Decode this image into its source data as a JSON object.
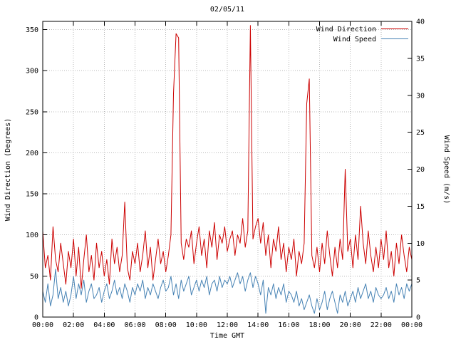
{
  "chart_data": {
    "type": "line",
    "title": "02/05/11",
    "xlabel": "Time GMT",
    "x_range": [
      "00:00",
      "24:00"
    ],
    "x_step_minutes": 10,
    "x_tick_labels": [
      "00:00",
      "02:00",
      "04:00",
      "06:00",
      "08:00",
      "10:00",
      "12:00",
      "14:00",
      "16:00",
      "18:00",
      "20:00",
      "22:00",
      "00:00"
    ],
    "y_left_ticks": [
      0,
      50,
      100,
      150,
      200,
      250,
      300,
      350
    ],
    "y_right_ticks": [
      0,
      5,
      10,
      15,
      20,
      25,
      30,
      35,
      40
    ],
    "grid": true,
    "legend_position": "top-right",
    "colors": {
      "grid": "#b8b8b8",
      "axis": "#000000"
    },
    "series": [
      {
        "name": "Wind Direction",
        "axis": "left",
        "ylabel": "Wind Direction (Degrees)",
        "ylim": [
          0,
          360
        ],
        "color": "#cc0000",
        "values": [
          105,
          60,
          75,
          45,
          110,
          70,
          55,
          90,
          65,
          40,
          80,
          60,
          95,
          50,
          85,
          35,
          70,
          100,
          55,
          75,
          45,
          90,
          60,
          80,
          50,
          70,
          40,
          95,
          65,
          85,
          55,
          75,
          140,
          60,
          45,
          80,
          65,
          90,
          55,
          75,
          105,
          60,
          85,
          45,
          70,
          95,
          65,
          80,
          55,
          75,
          100,
          272,
          345,
          340,
          90,
          70,
          95,
          85,
          105,
          65,
          90,
          110,
          75,
          95,
          60,
          105,
          85,
          115,
          70,
          100,
          90,
          110,
          80,
          95,
          105,
          75,
          100,
          90,
          120,
          85,
          105,
          355,
          95,
          110,
          120,
          90,
          115,
          75,
          100,
          60,
          95,
          80,
          110,
          70,
          90,
          55,
          85,
          70,
          95,
          50,
          80,
          65,
          90,
          260,
          290,
          75,
          60,
          85,
          55,
          90,
          65,
          105,
          75,
          50,
          85,
          60,
          95,
          70,
          180,
          80,
          95,
          60,
          100,
          70,
          135,
          90,
          65,
          105,
          75,
          55,
          85,
          60,
          95,
          70,
          105,
          60,
          80,
          50,
          90,
          65,
          100,
          75,
          55,
          85,
          70
        ]
      },
      {
        "name": "Wind Speed",
        "axis": "right",
        "ylabel": "Wind Speed (m/s)",
        "ylim": [
          0,
          40
        ],
        "color": "#4682b4",
        "values": [
          3.5,
          2.0,
          4.5,
          1.5,
          3.0,
          6.5,
          2.5,
          4.0,
          2.0,
          3.5,
          1.5,
          3.0,
          5.5,
          2.5,
          4.5,
          3.0,
          5.0,
          2.0,
          3.5,
          4.5,
          2.5,
          3.0,
          4.0,
          2.0,
          3.5,
          4.5,
          2.5,
          3.5,
          5.0,
          3.0,
          4.0,
          2.5,
          4.5,
          3.5,
          2.0,
          4.0,
          3.0,
          4.5,
          3.5,
          5.0,
          2.5,
          4.0,
          3.0,
          4.5,
          3.5,
          2.5,
          4.0,
          5.0,
          3.5,
          4.0,
          5.5,
          3.0,
          4.5,
          2.5,
          5.0,
          3.5,
          4.5,
          5.5,
          3.0,
          4.0,
          5.0,
          3.5,
          5.0,
          4.0,
          5.5,
          3.0,
          4.5,
          5.0,
          3.5,
          5.5,
          4.0,
          5.0,
          4.5,
          5.5,
          4.0,
          5.0,
          6.0,
          4.5,
          5.5,
          3.5,
          5.0,
          6.0,
          4.0,
          5.5,
          4.5,
          3.0,
          5.0,
          0.5,
          4.0,
          3.0,
          4.5,
          2.5,
          4.0,
          3.0,
          4.5,
          2.0,
          3.5,
          3.0,
          2.0,
          3.5,
          1.5,
          2.5,
          1.0,
          2.0,
          3.0,
          1.5,
          0.5,
          2.5,
          1.0,
          2.0,
          3.5,
          1.0,
          2.5,
          3.5,
          2.0,
          0.5,
          3.0,
          2.0,
          3.5,
          1.5,
          2.5,
          3.5,
          2.0,
          4.0,
          2.5,
          3.5,
          4.5,
          2.5,
          3.5,
          2.0,
          4.0,
          3.0,
          2.5,
          3.0,
          4.0,
          2.5,
          3.5,
          2.0,
          4.5,
          3.0,
          4.0,
          2.5,
          4.5,
          3.5,
          4.5
        ]
      }
    ]
  }
}
